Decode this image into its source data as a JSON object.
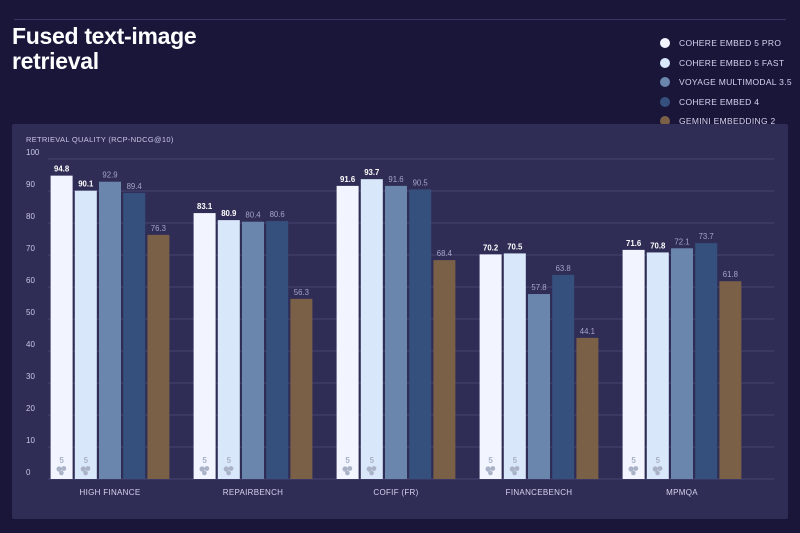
{
  "title": "Fused text-image retrieval",
  "colors": {
    "series": [
      "#f2f4ff",
      "#d9e7fb",
      "#6b86ad",
      "#35507d",
      "#7b6048"
    ],
    "background": "#19163a",
    "panel": "#2f2c55",
    "grid": "#474372",
    "text": "#d6d4ee"
  },
  "chart_data": {
    "type": "bar",
    "ylabel": "RETRIEVAL QUALITY (RCP-NDCG@10)",
    "ylim": [
      0,
      100
    ],
    "yticks": [
      0,
      10,
      20,
      30,
      40,
      50,
      60,
      70,
      80,
      90,
      100
    ],
    "grid": true,
    "legend_position": "top-right",
    "categories": [
      "HIGH FINANCE",
      "REPAIRBENCH",
      "COFIF (FR)",
      "FINANCEBENCH",
      "MPMQA"
    ],
    "series": [
      {
        "name": "COHERE EMBED 5 PRO",
        "values": [
          94.8,
          83.1,
          91.6,
          70.2,
          71.6
        ],
        "mark": "5"
      },
      {
        "name": "COHERE EMBED 5 FAST",
        "values": [
          90.1,
          80.9,
          93.7,
          70.5,
          70.8
        ],
        "mark": "5"
      },
      {
        "name": "VOYAGE MULTIMODAL 3.5",
        "values": [
          92.9,
          80.4,
          91.6,
          57.8,
          72.1
        ]
      },
      {
        "name": "COHERE EMBED 4",
        "values": [
          89.4,
          80.6,
          90.5,
          63.8,
          73.7
        ]
      },
      {
        "name": "GEMINI EMBEDDING 2",
        "values": [
          76.3,
          56.3,
          68.4,
          44.1,
          61.8
        ]
      }
    ]
  }
}
